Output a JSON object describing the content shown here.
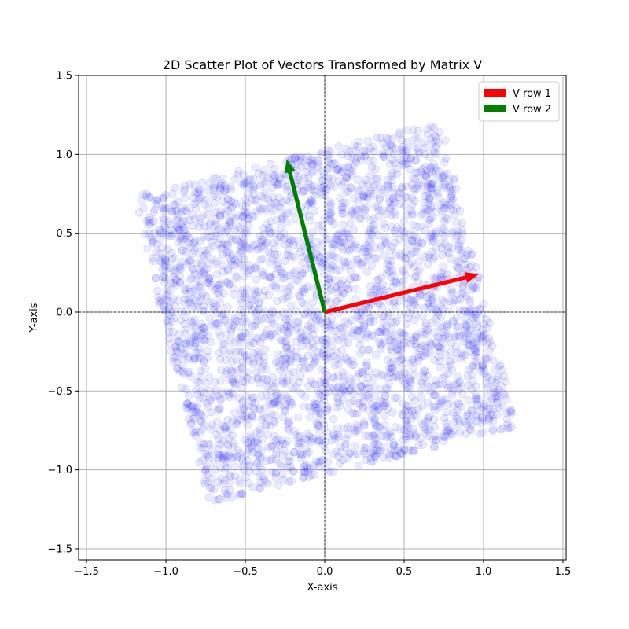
{
  "chart_data": {
    "type": "scatter",
    "title": "2D Scatter Plot of Vectors Transformed by Matrix V",
    "xlabel": "X-axis",
    "ylabel": "Y-axis",
    "xlim": [
      -1.55,
      1.52
    ],
    "ylim": [
      -1.57,
      1.5
    ],
    "x_ticks": [
      -1.5,
      -1.0,
      -0.5,
      0.0,
      0.5,
      1.0,
      1.5
    ],
    "x_tick_labels": [
      "−1.5",
      "−1.0",
      "−0.5",
      "0.0",
      "0.5",
      "1.0",
      "1.5"
    ],
    "y_ticks": [
      -1.5,
      -1.0,
      -0.5,
      0.0,
      0.5,
      1.0,
      1.5
    ],
    "y_tick_labels": [
      "−1.5",
      "−1.0",
      "−0.5",
      "0.0",
      "0.5",
      "1.0",
      "1.5"
    ],
    "grid": true,
    "reference_lines": {
      "x": 0,
      "y": 0,
      "style": "dashed",
      "color": "#000000"
    },
    "scatter": {
      "color": "#0000ff",
      "alpha": 0.1,
      "point_count": 3000,
      "distribution": "uniform over unit square [-1,1]^2 transformed by V",
      "corners": [
        [
          -1.21,
          0.68
        ],
        [
          0.73,
          1.2
        ],
        [
          1.21,
          -0.68
        ],
        [
          -0.73,
          -1.2
        ]
      ]
    },
    "vectors": [
      {
        "name": "V row 1",
        "color": "#ff0000",
        "x": 0.97,
        "y": 0.24
      },
      {
        "name": "V row 2",
        "color": "#008000",
        "x": -0.24,
        "y": 0.97
      }
    ],
    "legend": {
      "position": "top-right",
      "entries": [
        {
          "label": "V row 1",
          "color": "#ff0000"
        },
        {
          "label": "V row 2",
          "color": "#008000"
        }
      ]
    }
  }
}
